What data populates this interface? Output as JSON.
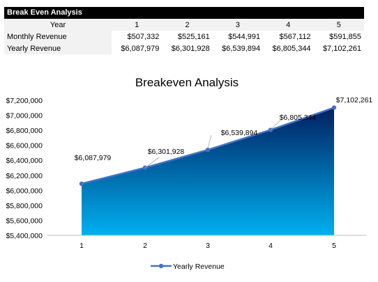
{
  "sheet": {
    "title": "Break Even Analysis",
    "year_label": "Year",
    "years": [
      "1",
      "2",
      "3",
      "4",
      "5"
    ],
    "rows": [
      {
        "label": "Monthly Revenue",
        "values": [
          "$507,332",
          "$525,161",
          "$544,991",
          "$567,112",
          "$591,855"
        ]
      },
      {
        "label": "Yearly Revenue",
        "values": [
          "$6,087,979",
          "$6,301,928",
          "$6,539,894",
          "$6,805,344",
          "$7,102,261"
        ]
      }
    ]
  },
  "chart_data": {
    "type": "area",
    "title": "Breakeven Analysis",
    "xlabel": "",
    "ylabel": "",
    "categories": [
      "1",
      "2",
      "3",
      "4",
      "5"
    ],
    "series": [
      {
        "name": "Yearly Revenue",
        "values": [
          6087979,
          6301928,
          6539894,
          6805344,
          7102261
        ]
      }
    ],
    "data_labels": [
      "$6,087,979",
      "$6,301,928",
      "$6,539,894",
      "$6,805,344",
      "$7,102,261"
    ],
    "ylim": [
      5400000,
      7200000
    ],
    "yticks": [
      5400000,
      5600000,
      5800000,
      6000000,
      6200000,
      6400000,
      6600000,
      6800000,
      7000000,
      7200000
    ],
    "ytick_labels": [
      "$5,400,000",
      "$5,600,000",
      "$5,800,000",
      "$6,000,000",
      "$6,200,000",
      "$6,400,000",
      "$6,600,000",
      "$6,800,000",
      "$7,000,000",
      "$7,200,000"
    ],
    "grid": false,
    "legend": "bottom",
    "colors": {
      "line": "#4472c4",
      "fill_top": "#002060",
      "fill_bottom": "#00b0f0"
    }
  }
}
